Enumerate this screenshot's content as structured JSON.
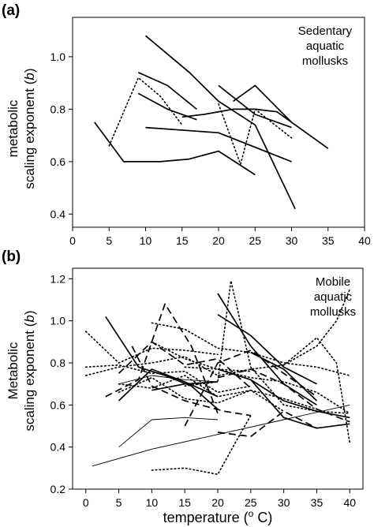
{
  "chart_data": [
    {
      "type": "line",
      "panel_label": "(a)",
      "annotation": [
        "Sedentary",
        "aquatic",
        "mollusks"
      ],
      "xlabel": "",
      "ylabel": [
        "metabolic",
        "scaling exponent (b)"
      ],
      "xlim": [
        0,
        40
      ],
      "ylim": [
        0.35,
        1.15
      ],
      "xticks": [
        "0",
        "5",
        "10",
        "15",
        "20",
        "25",
        "30",
        "35",
        "40"
      ],
      "yticks": [
        "0.4",
        "0.6",
        "0.8",
        "1.0"
      ],
      "series": [
        {
          "style": "solid",
          "x": [
            3,
            7,
            12,
            16,
            20,
            25
          ],
          "y": [
            0.75,
            0.6,
            0.6,
            0.61,
            0.64,
            0.55
          ]
        },
        {
          "style": "solid",
          "x": [
            10,
            16,
            20,
            25,
            30.5
          ],
          "y": [
            1.08,
            0.94,
            0.83,
            0.74,
            0.42
          ]
        },
        {
          "style": "solid",
          "x": [
            9,
            13,
            17
          ],
          "y": [
            0.94,
            0.89,
            0.8
          ]
        },
        {
          "style": "solid",
          "x": [
            9,
            13,
            17
          ],
          "y": [
            0.86,
            0.8,
            0.76
          ]
        },
        {
          "style": "solid",
          "x": [
            10,
            20,
            30
          ],
          "y": [
            0.73,
            0.71,
            0.6
          ]
        },
        {
          "style": "solid",
          "x": [
            15,
            18,
            22,
            25,
            28,
            35
          ],
          "y": [
            0.77,
            0.78,
            0.8,
            0.8,
            0.79,
            0.65
          ]
        },
        {
          "style": "solid",
          "x": [
            20,
            25,
            30
          ],
          "y": [
            0.89,
            0.78,
            0.73
          ]
        },
        {
          "style": "solid",
          "x": [
            22,
            25,
            30
          ],
          "y": [
            0.83,
            0.89,
            0.75
          ]
        },
        {
          "style": "dotted",
          "x": [
            5,
            9,
            12,
            15
          ],
          "y": [
            0.66,
            0.92,
            0.85,
            0.74
          ]
        },
        {
          "style": "dotted",
          "x": [
            20,
            23,
            25,
            30
          ],
          "y": [
            0.82,
            0.59,
            0.8,
            0.69
          ]
        }
      ]
    },
    {
      "type": "line",
      "panel_label": "(b)",
      "annotation": [
        "Mobile",
        "aquatic",
        "mollusks"
      ],
      "xlabel": "temperature (° C)",
      "ylabel": [
        "Metabolic",
        "scaling exponent (b)"
      ],
      "xlim": [
        -2,
        42
      ],
      "ylim": [
        0.2,
        1.25
      ],
      "xticks": [
        "0",
        "5",
        "10",
        "15",
        "20",
        "25",
        "30",
        "35",
        "40"
      ],
      "yticks": [
        "0.2",
        "0.4",
        "0.6",
        "0.8",
        "1.0",
        "1.2"
      ],
      "series": [
        {
          "style": "solid",
          "x": [
            3,
            8,
            12,
            16,
            20
          ],
          "y": [
            1.02,
            0.78,
            0.74,
            0.69,
            0.58
          ]
        },
        {
          "style": "solid",
          "x": [
            5,
            10,
            15,
            20
          ],
          "y": [
            0.62,
            0.77,
            0.71,
            0.64
          ]
        },
        {
          "style": "solid",
          "x": [
            10,
            15,
            20
          ],
          "y": [
            0.67,
            0.7,
            0.71
          ]
        },
        {
          "style": "solid",
          "x": [
            20,
            25,
            30,
            35
          ],
          "y": [
            1.13,
            0.88,
            0.7,
            0.6
          ]
        },
        {
          "style": "solid",
          "x": [
            20,
            25,
            30,
            35
          ],
          "y": [
            1.03,
            0.93,
            0.78,
            0.7
          ]
        },
        {
          "style": "solid",
          "x": [
            25,
            30,
            35,
            40
          ],
          "y": [
            0.72,
            0.54,
            0.49,
            0.51
          ]
        },
        {
          "style": "solid",
          "x": [
            20,
            25,
            30,
            35,
            40
          ],
          "y": [
            0.77,
            0.72,
            0.62,
            0.57,
            0.54
          ]
        },
        {
          "style": "solid",
          "x": [
            25,
            30,
            35
          ],
          "y": [
            0.85,
            0.77,
            0.62
          ]
        },
        {
          "style": "thin",
          "x": [
            5,
            10,
            15,
            20
          ],
          "y": [
            0.4,
            0.53,
            0.54,
            0.53
          ]
        },
        {
          "style": "thin",
          "x": [
            1,
            10,
            20,
            30,
            40
          ],
          "y": [
            0.31,
            0.39,
            0.46,
            0.53,
            0.6
          ]
        },
        {
          "style": "thin",
          "x": [
            5,
            10,
            15,
            20
          ],
          "y": [
            0.7,
            0.74,
            0.72,
            0.71
          ]
        },
        {
          "style": "dashed",
          "x": [
            3,
            8,
            12,
            16,
            20
          ],
          "y": [
            0.64,
            0.72,
            1.08,
            0.88,
            0.56
          ]
        },
        {
          "style": "dashed",
          "x": [
            7,
            10,
            15,
            21,
            25
          ],
          "y": [
            0.88,
            0.69,
            0.62,
            0.57,
            0.55
          ]
        },
        {
          "style": "dashed",
          "x": [
            15,
            20,
            25,
            30,
            35
          ],
          "y": [
            0.5,
            0.8,
            0.86,
            0.75,
            0.64
          ]
        },
        {
          "style": "dashed",
          "x": [
            20,
            25,
            30,
            35,
            40
          ],
          "y": [
            0.73,
            0.77,
            0.7,
            0.58,
            0.52
          ]
        },
        {
          "style": "dashed",
          "x": [
            5,
            10,
            15,
            20,
            25
          ],
          "y": [
            0.75,
            0.9,
            0.79,
            0.82,
            0.68
          ]
        },
        {
          "style": "dashed",
          "x": [
            20,
            25,
            30,
            35
          ],
          "y": [
            0.47,
            0.45,
            0.57,
            0.49
          ]
        },
        {
          "style": "dotted",
          "x": [
            0,
            5,
            10,
            15,
            20
          ],
          "y": [
            0.95,
            0.8,
            0.87,
            0.86,
            0.84
          ]
        },
        {
          "style": "dotted",
          "x": [
            0,
            5,
            10,
            15,
            20,
            25
          ],
          "y": [
            0.78,
            0.79,
            0.75,
            0.76,
            0.66,
            0.69
          ]
        },
        {
          "style": "dotted",
          "x": [
            10,
            15,
            20,
            25,
            30,
            35,
            40
          ],
          "y": [
            0.99,
            0.96,
            0.87,
            0.85,
            0.8,
            0.78,
            0.74
          ]
        },
        {
          "style": "dotted",
          "x": [
            15,
            20,
            25,
            30,
            35,
            40
          ],
          "y": [
            0.78,
            0.77,
            0.73,
            0.71,
            0.66,
            0.56
          ]
        },
        {
          "style": "dotted",
          "x": [
            5,
            10,
            15,
            20,
            25,
            30,
            35
          ],
          "y": [
            0.66,
            0.73,
            0.63,
            0.61,
            0.67,
            0.63,
            0.58
          ]
        },
        {
          "style": "dotted",
          "x": [
            5,
            10,
            15,
            20,
            25,
            30
          ],
          "y": [
            0.7,
            0.68,
            0.74,
            0.64,
            0.67,
            0.57
          ]
        },
        {
          "style": "dotted",
          "x": [
            0,
            5,
            10,
            15,
            20,
            25,
            30,
            35,
            38,
            40
          ],
          "y": [
            0.74,
            0.78,
            0.8,
            0.83,
            0.74,
            0.77,
            0.79,
            0.92,
            0.8,
            0.42
          ]
        },
        {
          "style": "dotted",
          "x": [
            15,
            20,
            22,
            25,
            30,
            35,
            40
          ],
          "y": [
            0.69,
            0.71,
            1.19,
            0.78,
            0.6,
            0.57,
            0.56
          ]
        },
        {
          "style": "dotted",
          "x": [
            10,
            15,
            20,
            23,
            25
          ],
          "y": [
            0.29,
            0.3,
            0.27,
            0.44,
            0.55
          ]
        },
        {
          "style": "dotted",
          "x": [
            30,
            35,
            38,
            40
          ],
          "y": [
            0.79,
            0.88,
            1.0,
            1.15
          ]
        },
        {
          "style": "dotted",
          "x": [
            10,
            15,
            20,
            25
          ],
          "y": [
            0.9,
            0.82,
            0.77,
            0.76
          ]
        }
      ]
    }
  ]
}
